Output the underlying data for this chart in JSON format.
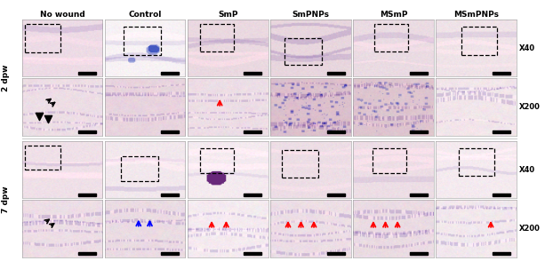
{
  "col_labels": [
    "No wound",
    "Control",
    "SmP",
    "SmPNPs",
    "MSmP",
    "MSmPNPs"
  ],
  "row_group_labels": [
    "2 dpw",
    "7 dpw"
  ],
  "magnification_labels": [
    "X40",
    "X200",
    "X40",
    "X200"
  ],
  "col_label_fontsize": 6.5,
  "row_label_fontsize": 6.5,
  "mag_label_fontsize": 6.0,
  "n_cols": 6,
  "n_rows": 4,
  "background_color": "#ffffff",
  "figure_width": 6.13,
  "figure_height": 2.94,
  "dpi": 100,
  "cell_base_colors": [
    [
      [
        0.93,
        0.86,
        0.9
      ],
      [
        0.97,
        0.95,
        0.96
      ],
      [
        0.92,
        0.85,
        0.88
      ],
      [
        0.91,
        0.84,
        0.87
      ],
      [
        0.92,
        0.86,
        0.89
      ],
      [
        0.94,
        0.89,
        0.91
      ]
    ],
    [
      [
        0.93,
        0.87,
        0.9
      ],
      [
        0.91,
        0.83,
        0.87
      ],
      [
        0.93,
        0.87,
        0.9
      ],
      [
        0.86,
        0.75,
        0.8
      ],
      [
        0.87,
        0.77,
        0.81
      ],
      [
        0.95,
        0.9,
        0.92
      ]
    ],
    [
      [
        0.94,
        0.88,
        0.91
      ],
      [
        0.95,
        0.91,
        0.93
      ],
      [
        0.96,
        0.92,
        0.94
      ],
      [
        0.93,
        0.87,
        0.9
      ],
      [
        0.93,
        0.87,
        0.9
      ],
      [
        0.96,
        0.92,
        0.94
      ]
    ],
    [
      [
        0.93,
        0.87,
        0.9
      ],
      [
        0.92,
        0.86,
        0.89
      ],
      [
        0.96,
        0.92,
        0.94
      ],
      [
        0.93,
        0.87,
        0.9
      ],
      [
        0.92,
        0.86,
        0.89
      ],
      [
        0.95,
        0.91,
        0.93
      ]
    ]
  ],
  "dashed_box_positions": {
    "0_0": [
      0.04,
      0.42,
      0.42,
      0.5
    ],
    "1_0": [
      0.25,
      0.38,
      0.45,
      0.48
    ],
    "2_0": [
      0.18,
      0.45,
      0.4,
      0.46
    ],
    "3_0": [
      0.2,
      0.22,
      0.45,
      0.46
    ],
    "4_0": [
      0.28,
      0.45,
      0.4,
      0.46
    ],
    "5_0": [
      0.35,
      0.38,
      0.45,
      0.48
    ],
    "0_2": [
      0.04,
      0.5,
      0.42,
      0.42
    ],
    "1_2": [
      0.22,
      0.32,
      0.45,
      0.42
    ],
    "2_2": [
      0.18,
      0.45,
      0.4,
      0.42
    ],
    "3_2": [
      0.15,
      0.38,
      0.45,
      0.46
    ],
    "4_2": [
      0.25,
      0.45,
      0.42,
      0.44
    ],
    "5_2": [
      0.3,
      0.42,
      0.42,
      0.46
    ]
  }
}
